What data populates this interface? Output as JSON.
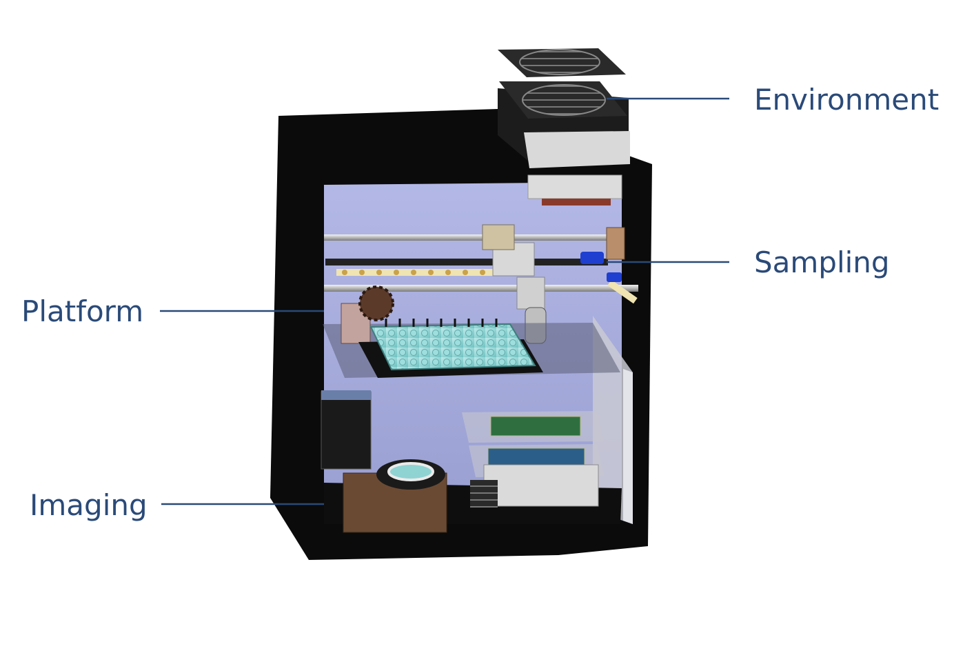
{
  "labels": {
    "environment": "Environment",
    "sampling": "Sampling",
    "platform": "Platform",
    "imaging": "Imaging"
  },
  "colors": {
    "label_text": "#2a4a78",
    "leader_line": "#2a4a78",
    "enclosure_frame": "#0a0a0a",
    "interior": "#a6acd8",
    "well_plate": "#8fd3d3",
    "imaging_box": "#6b4a33"
  }
}
